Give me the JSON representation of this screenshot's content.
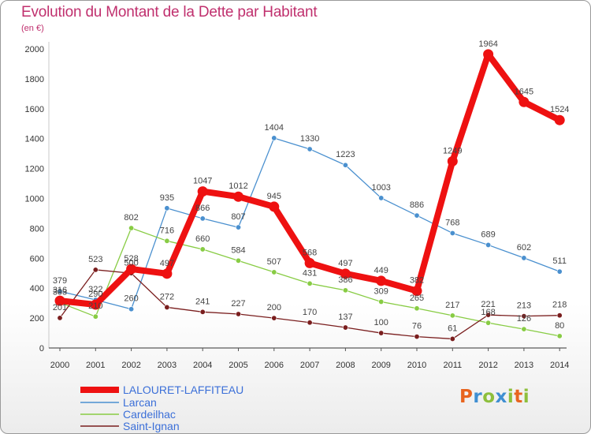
{
  "title": "Evolution du Montant de la Dette par Habitant",
  "subtitle": "(en €)",
  "logo": {
    "text": "Proxiti",
    "colors": [
      "#e8641e",
      "#3f8fd2",
      "#8dbf3c",
      "#3f8fd2",
      "#8dbf3c",
      "#e8641e",
      "#8dbf3c"
    ]
  },
  "chart_data": {
    "type": "line",
    "x": [
      2000,
      2001,
      2002,
      2003,
      2004,
      2005,
      2006,
      2007,
      2008,
      2009,
      2010,
      2011,
      2012,
      2013,
      2014
    ],
    "ylim": [
      0,
      2000
    ],
    "yticks": [
      0,
      200,
      400,
      600,
      800,
      1000,
      1200,
      1400,
      1600,
      1800,
      2000
    ],
    "grid": false,
    "legend_position": "bottom-left",
    "series": [
      {
        "name": "LALOURET-LAFFITEAU",
        "color": "#ee1111",
        "emphasis": true,
        "values": [
          316,
          290,
          528,
          497,
          1047,
          1012,
          945,
          568,
          497,
          449,
          382,
          1249,
          1964,
          1645,
          1524
        ]
      },
      {
        "name": "Larcan",
        "color": "#4a90cf",
        "values": [
          379,
          322,
          260,
          935,
          866,
          807,
          1404,
          1330,
          1223,
          1003,
          886,
          768,
          689,
          602,
          511
        ]
      },
      {
        "name": "Cardeilhac",
        "color": "#88cc44",
        "values": [
          303,
          210,
          802,
          716,
          660,
          584,
          507,
          431,
          386,
          309,
          265,
          217,
          168,
          126,
          80
        ]
      },
      {
        "name": "Saint-Ignan",
        "color": "#7a1e1e",
        "values": [
          201,
          523,
          500,
          272,
          241,
          227,
          200,
          170,
          137,
          100,
          76,
          61,
          221,
          213,
          218
        ]
      }
    ]
  }
}
